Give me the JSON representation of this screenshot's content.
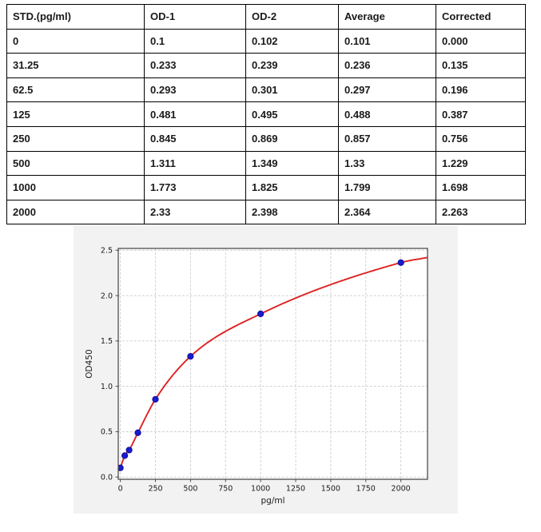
{
  "table": {
    "headers": [
      "STD.(pg/ml)",
      "OD-1",
      "OD-2",
      "Average",
      "Corrected"
    ],
    "rows": [
      [
        "0",
        "0.1",
        "0.102",
        "0.101",
        "0.000"
      ],
      [
        "31.25",
        "0.233",
        "0.239",
        "0.236",
        "0.135"
      ],
      [
        "62.5",
        "0.293",
        "0.301",
        "0.297",
        "0.196"
      ],
      [
        "125",
        "0.481",
        "0.495",
        "0.488",
        "0.387"
      ],
      [
        "250",
        "0.845",
        "0.869",
        "0.857",
        "0.756"
      ],
      [
        "500",
        "1.311",
        "1.349",
        "1.33",
        "1.229"
      ],
      [
        "1000",
        "1.773",
        "1.825",
        "1.799",
        "1.698"
      ],
      [
        "2000",
        "2.33",
        "2.398",
        "2.364",
        "2.263"
      ]
    ]
  },
  "chart_data": {
    "type": "scatter",
    "title": "",
    "xlabel": "pg/ml",
    "ylabel": "OD450",
    "xlim": [
      -15,
      2190
    ],
    "ylim": [
      -0.025,
      2.52
    ],
    "grid": true,
    "x_ticks": [
      0,
      250,
      500,
      750,
      1000,
      1250,
      1500,
      1750,
      2000
    ],
    "x_tick_labels": [
      "0",
      "250",
      "500",
      "750",
      "1000",
      "1250",
      "1500",
      "1750",
      "2000"
    ],
    "y_ticks": [
      0.0,
      0.5,
      1.0,
      1.5,
      2.0,
      2.5
    ],
    "y_tick_labels": [
      "0.0",
      "0.5",
      "1.0",
      "1.5",
      "2.0",
      "2.5"
    ],
    "series": [
      {
        "name": "standards",
        "marker": "circle",
        "x": [
          0,
          31.25,
          62.5,
          125,
          250,
          500,
          1000,
          2000
        ],
        "y": [
          0.101,
          0.236,
          0.297,
          0.488,
          0.857,
          1.33,
          1.799,
          2.364
        ]
      }
    ],
    "fit_curve": {
      "name": "standard-curve-fit",
      "x_start": 0,
      "x_end": 2190,
      "y_end": 2.42,
      "through_points": true
    },
    "colors": {
      "points": "#1a1acd",
      "points_edge": "#0b0b96",
      "curve": "#dd2222",
      "figure_bg": "#f2f2f2",
      "plot_bg": "#ffffff",
      "grid": "#c9c9c9",
      "frame": "#4d4d4d",
      "tick_text": "#1a1a1a"
    }
  }
}
